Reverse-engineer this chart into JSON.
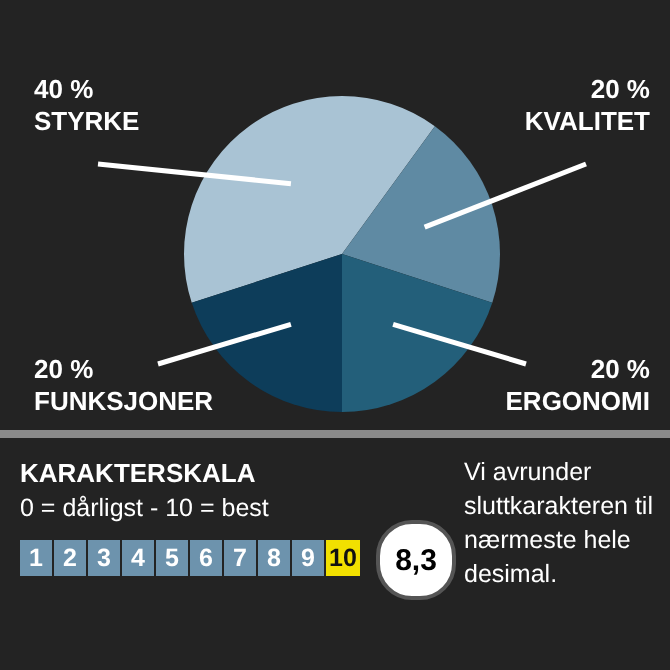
{
  "chart_data": {
    "type": "pie",
    "categories": [
      "STYRKE",
      "KVALITET",
      "ERGONOMI",
      "FUNKSJONER"
    ],
    "values": [
      40,
      20,
      20,
      20
    ],
    "value_labels": [
      "40 %",
      "20 %",
      "20 %",
      "20 %"
    ],
    "colors": [
      "#a9c3d4",
      "#5f8aa3",
      "#235f7a",
      "#0d3d5a"
    ],
    "legend": false,
    "annotations": [
      "KARAKTERSKALA",
      "0 = dårligst - 10 = best",
      "1",
      "2",
      "3",
      "4",
      "5",
      "6",
      "7",
      "8",
      "9",
      "10",
      "8,3",
      "Vi avrunder sluttkarakteren til nærmeste hele desimal."
    ]
  }
}
